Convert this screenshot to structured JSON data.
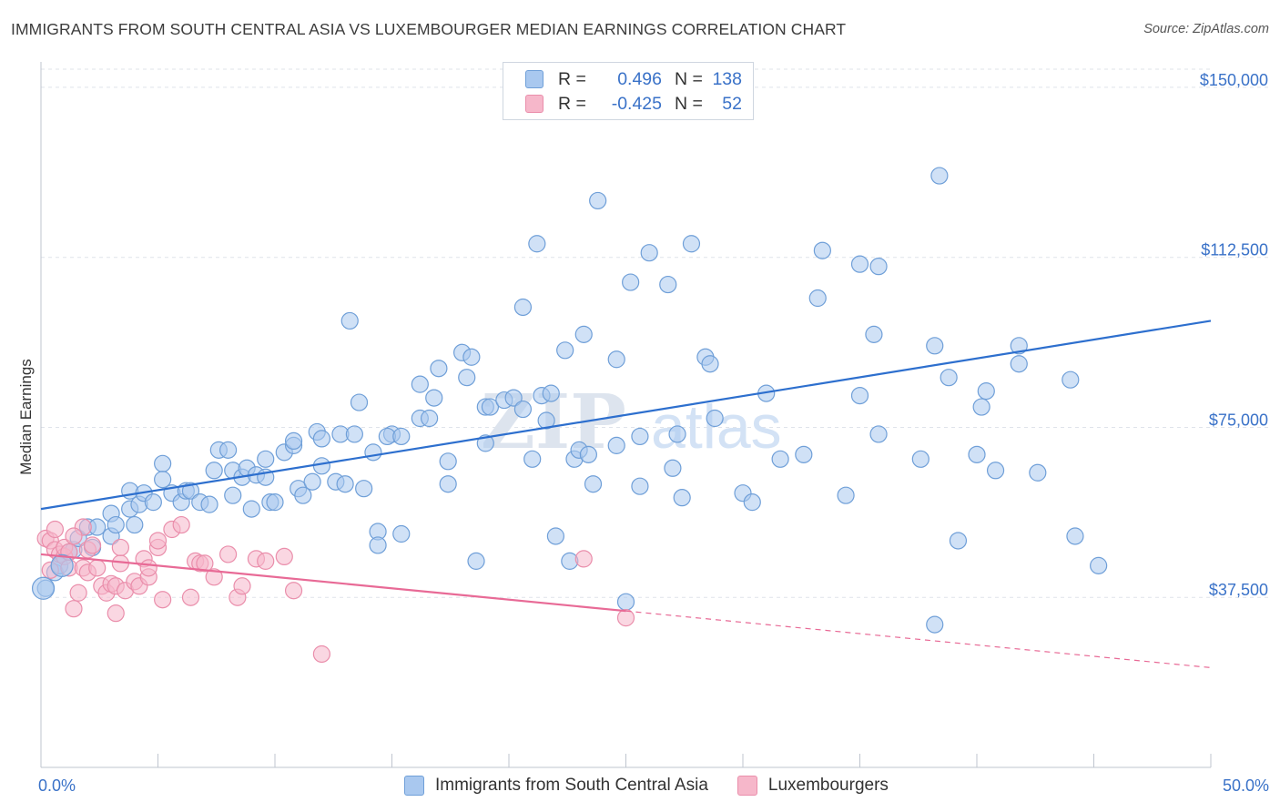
{
  "header": {
    "title": "IMMIGRANTS FROM SOUTH CENTRAL ASIA VS LUXEMBOURGER MEDIAN EARNINGS CORRELATION CHART",
    "source": "Source: ZipAtlas.com"
  },
  "watermark": {
    "part1": "ZIP",
    "part2": "atlas"
  },
  "legend": {
    "rows": [
      {
        "r_label": "R =",
        "r_value": "0.496",
        "n_label": "N =",
        "n_value": "138",
        "color": "#a9c8ef"
      },
      {
        "r_label": "R =",
        "r_value": "-0.425",
        "n_label": "N =",
        "n_value": "52",
        "color": "#f6b7ca"
      }
    ]
  },
  "colors": {
    "blue_fill": "#a9c8ef",
    "blue_stroke": "#6f9fd8",
    "blue_line": "#2d6fce",
    "pink_fill": "#f6b7ca",
    "pink_stroke": "#ea8eab",
    "pink_line": "#e86a96",
    "axis_label": "#3a72c8",
    "grid": "#dfe3ea"
  },
  "chart_data": {
    "type": "scatter",
    "title": "IMMIGRANTS FROM SOUTH CENTRAL ASIA VS LUXEMBOURGER MEDIAN EARNINGS CORRELATION CHART",
    "xlabel": "",
    "ylabel": "Median Earnings",
    "xlim": [
      0,
      50
    ],
    "ylim": [
      0,
      154000
    ],
    "x_tick_labels": [
      "0.0%",
      "50.0%"
    ],
    "y_ticks": [
      37500,
      75000,
      112500,
      150000
    ],
    "y_tick_labels": [
      "$37,500",
      "$75,000",
      "$112,500",
      "$150,000"
    ],
    "grid": true,
    "legend_position": "bottom",
    "series": [
      {
        "name": "Immigrants from South Central Asia",
        "r": 0.496,
        "n": 138,
        "trend": {
          "x": [
            0,
            50
          ],
          "y": [
            57000,
            98500
          ]
        },
        "points": [
          [
            0.2,
            39500
          ],
          [
            0.6,
            43000
          ],
          [
            0.8,
            44500
          ],
          [
            1.2,
            47500
          ],
          [
            1.4,
            48000
          ],
          [
            1.6,
            50500
          ],
          [
            2.0,
            53000
          ],
          [
            2.2,
            48500
          ],
          [
            2.4,
            53000
          ],
          [
            3.0,
            51000
          ],
          [
            3.0,
            56000
          ],
          [
            3.2,
            53500
          ],
          [
            3.8,
            57000
          ],
          [
            3.8,
            61000
          ],
          [
            4.0,
            53500
          ],
          [
            4.2,
            58000
          ],
          [
            4.4,
            60500
          ],
          [
            4.8,
            58500
          ],
          [
            5.2,
            67000
          ],
          [
            5.2,
            63500
          ],
          [
            5.6,
            60500
          ],
          [
            6.0,
            58500
          ],
          [
            6.2,
            61000
          ],
          [
            6.4,
            61000
          ],
          [
            6.8,
            58500
          ],
          [
            7.2,
            58000
          ],
          [
            7.4,
            65500
          ],
          [
            7.6,
            70000
          ],
          [
            8.0,
            70000
          ],
          [
            8.2,
            60000
          ],
          [
            8.2,
            65500
          ],
          [
            8.6,
            64000
          ],
          [
            8.8,
            66000
          ],
          [
            9.2,
            64500
          ],
          [
            9.0,
            57000
          ],
          [
            9.6,
            64000
          ],
          [
            9.6,
            68000
          ],
          [
            9.8,
            58500
          ],
          [
            10.0,
            58500
          ],
          [
            10.4,
            69500
          ],
          [
            10.8,
            71000
          ],
          [
            10.8,
            72000
          ],
          [
            11.0,
            61500
          ],
          [
            11.2,
            60000
          ],
          [
            11.6,
            63000
          ],
          [
            11.8,
            74000
          ],
          [
            12.0,
            66500
          ],
          [
            12.0,
            72500
          ],
          [
            12.6,
            63000
          ],
          [
            12.8,
            73500
          ],
          [
            13.0,
            62500
          ],
          [
            13.4,
            73500
          ],
          [
            13.2,
            98500
          ],
          [
            13.6,
            80500
          ],
          [
            13.8,
            61500
          ],
          [
            14.2,
            69500
          ],
          [
            14.4,
            52000
          ],
          [
            14.4,
            49000
          ],
          [
            15.0,
            73500
          ],
          [
            14.8,
            73000
          ],
          [
            15.4,
            51500
          ],
          [
            15.4,
            73000
          ],
          [
            16.2,
            84500
          ],
          [
            16.2,
            77000
          ],
          [
            16.6,
            77000
          ],
          [
            16.8,
            81500
          ],
          [
            17.0,
            88000
          ],
          [
            17.4,
            62500
          ],
          [
            17.4,
            67500
          ],
          [
            18.0,
            91500
          ],
          [
            18.2,
            86000
          ],
          [
            18.4,
            90500
          ],
          [
            18.6,
            45500
          ],
          [
            19.0,
            71500
          ],
          [
            19.0,
            79500
          ],
          [
            19.2,
            79500
          ],
          [
            19.8,
            81000
          ],
          [
            20.2,
            81500
          ],
          [
            20.6,
            101500
          ],
          [
            20.6,
            79000
          ],
          [
            21.0,
            68000
          ],
          [
            21.2,
            115500
          ],
          [
            21.4,
            82000
          ],
          [
            21.6,
            76500
          ],
          [
            21.8,
            82500
          ],
          [
            22.0,
            51000
          ],
          [
            22.4,
            92000
          ],
          [
            22.6,
            45500
          ],
          [
            22.8,
            68000
          ],
          [
            23.0,
            70000
          ],
          [
            23.2,
            95500
          ],
          [
            23.4,
            69000
          ],
          [
            23.6,
            62500
          ],
          [
            23.8,
            125000
          ],
          [
            24.6,
            90000
          ],
          [
            24.6,
            71000
          ],
          [
            25.0,
            36500
          ],
          [
            25.2,
            107000
          ],
          [
            25.6,
            62000
          ],
          [
            25.6,
            73000
          ],
          [
            26.0,
            113500
          ],
          [
            26.8,
            106500
          ],
          [
            27.0,
            66000
          ],
          [
            27.2,
            73500
          ],
          [
            27.4,
            59500
          ],
          [
            27.8,
            115500
          ],
          [
            28.4,
            90500
          ],
          [
            28.6,
            89000
          ],
          [
            28.8,
            77000
          ],
          [
            30.0,
            60500
          ],
          [
            30.4,
            58500
          ],
          [
            31.0,
            82500
          ],
          [
            31.6,
            68000
          ],
          [
            32.6,
            69000
          ],
          [
            33.2,
            103500
          ],
          [
            33.4,
            114000
          ],
          [
            34.4,
            60000
          ],
          [
            35.0,
            111000
          ],
          [
            35.6,
            95500
          ],
          [
            35.8,
            110500
          ],
          [
            35.0,
            82000
          ],
          [
            35.8,
            73500
          ],
          [
            37.6,
            68000
          ],
          [
            38.2,
            93000
          ],
          [
            38.2,
            31500
          ],
          [
            38.8,
            86000
          ],
          [
            38.4,
            130500
          ],
          [
            39.2,
            50000
          ],
          [
            40.0,
            69000
          ],
          [
            40.2,
            79500
          ],
          [
            40.4,
            83000
          ],
          [
            40.8,
            65500
          ],
          [
            41.8,
            93000
          ],
          [
            41.8,
            89000
          ],
          [
            42.6,
            65000
          ],
          [
            44.0,
            85500
          ],
          [
            44.2,
            51000
          ],
          [
            45.2,
            44500
          ]
        ]
      },
      {
        "name": "Luxembourgers",
        "r": -0.425,
        "n": 52,
        "trend": {
          "x": [
            0,
            25
          ],
          "y": [
            47000,
            34500
          ]
        },
        "trend_dashed": {
          "x": [
            25,
            50
          ],
          "y": [
            34500,
            22000
          ]
        },
        "points": [
          [
            0.2,
            50500
          ],
          [
            0.4,
            50000
          ],
          [
            0.6,
            52500
          ],
          [
            0.6,
            48000
          ],
          [
            0.8,
            47000
          ],
          [
            1.0,
            46500
          ],
          [
            1.0,
            48500
          ],
          [
            1.2,
            44000
          ],
          [
            1.2,
            47500
          ],
          [
            1.4,
            35000
          ],
          [
            1.6,
            38500
          ],
          [
            1.8,
            44000
          ],
          [
            1.8,
            53000
          ],
          [
            2.0,
            48000
          ],
          [
            2.0,
            43000
          ],
          [
            2.2,
            49000
          ],
          [
            2.4,
            44000
          ],
          [
            2.6,
            40000
          ],
          [
            2.8,
            38500
          ],
          [
            3.0,
            40500
          ],
          [
            3.2,
            40000
          ],
          [
            3.4,
            45000
          ],
          [
            3.4,
            48500
          ],
          [
            3.6,
            39000
          ],
          [
            4.0,
            41000
          ],
          [
            4.2,
            40000
          ],
          [
            4.4,
            46000
          ],
          [
            4.6,
            42000
          ],
          [
            4.6,
            44000
          ],
          [
            5.0,
            48500
          ],
          [
            5.0,
            50000
          ],
          [
            5.2,
            37000
          ],
          [
            5.6,
            52500
          ],
          [
            6.0,
            53500
          ],
          [
            6.6,
            45500
          ],
          [
            6.8,
            45000
          ],
          [
            7.0,
            45000
          ],
          [
            7.4,
            42000
          ],
          [
            8.0,
            47000
          ],
          [
            8.4,
            37500
          ],
          [
            8.6,
            40000
          ],
          [
            9.2,
            46000
          ],
          [
            9.6,
            45500
          ],
          [
            10.4,
            46500
          ],
          [
            10.8,
            39000
          ],
          [
            12.0,
            25000
          ],
          [
            23.2,
            46000
          ],
          [
            25.0,
            33000
          ],
          [
            0.4,
            43500
          ],
          [
            3.2,
            34000
          ],
          [
            6.4,
            37500
          ],
          [
            1.4,
            51000
          ]
        ]
      }
    ]
  }
}
